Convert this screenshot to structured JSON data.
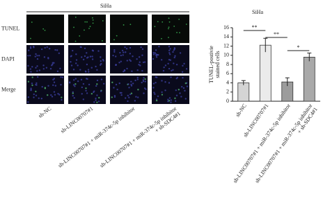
{
  "panel": {
    "title": "SiHa",
    "row_labels": [
      "TUNEL",
      "DAPI",
      "Merge"
    ]
  },
  "chart_data": {
    "type": "bar",
    "title": "SiHa",
    "y_label": [
      "TUNEL-postivie",
      "stained cells"
    ],
    "categories": [
      [
        "sh-NC"
      ],
      [
        "sh-LINC00707#1"
      ],
      [
        "sh-LINC00707#1 + miR-374c-5p inhibitor"
      ],
      [
        "sh-LINC00707#1 + miR-374c-5p inhibitor",
        "+ sh-SDC4#1"
      ]
    ],
    "values": [
      4.0,
      12.2,
      4.2,
      9.6
    ],
    "errors": [
      0.5,
      1.5,
      0.9,
      0.9
    ],
    "colors": [
      "#d4d4d4",
      "#ebebeb",
      "#9c9c9c",
      "#a9a9a9"
    ],
    "ylim": [
      0,
      16
    ],
    "yticks": [
      0,
      2,
      4,
      6,
      8,
      10,
      12,
      14,
      16
    ],
    "annotations": [
      "**",
      "**",
      "*"
    ]
  }
}
